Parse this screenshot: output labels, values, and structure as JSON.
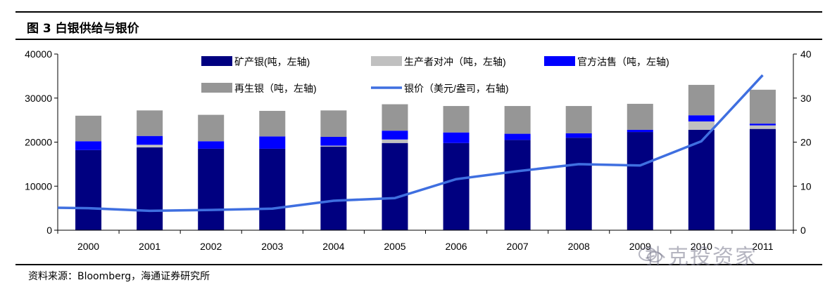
{
  "figure": {
    "title": "图 3  白银供给与银价",
    "source": "资料来源：Bloomberg，海通证券研究所",
    "watermark": "扑克投资家"
  },
  "colors": {
    "mine": "#000080",
    "producer_hedge": "#c0c0c0",
    "official": "#0000ff",
    "scrap": "#969696",
    "price": "#3f6fe0"
  },
  "chart_data": {
    "type": "bar",
    "stacked": true,
    "title": "白银供给与银价",
    "categories": [
      "2000",
      "2001",
      "2002",
      "2003",
      "2004",
      "2005",
      "2006",
      "2007",
      "2008",
      "2009",
      "2010",
      "2011"
    ],
    "series": [
      {
        "name": "矿产银(吨，左轴)",
        "axis": "left",
        "type": "bar",
        "color_key": "mine",
        "values": [
          18200,
          18800,
          18500,
          18500,
          19000,
          19800,
          19800,
          20500,
          21000,
          22300,
          22800,
          23000
        ]
      },
      {
        "name": "生产者对冲（吨，左轴)",
        "axis": "left",
        "type": "bar",
        "color_key": "producer_hedge",
        "values": [
          0,
          600,
          0,
          0,
          200,
          800,
          0,
          0,
          0,
          0,
          1900,
          800
        ]
      },
      {
        "name": "官方沽售（吨，左轴)",
        "axis": "left",
        "type": "bar",
        "color_key": "official",
        "values": [
          2000,
          2000,
          1700,
          2800,
          2000,
          2000,
          2400,
          1400,
          1000,
          500,
          1400,
          400
        ]
      },
      {
        "name": "再生银（吨，左轴)",
        "axis": "left",
        "type": "bar",
        "color_key": "scrap",
        "values": [
          5800,
          5800,
          6000,
          5800,
          6000,
          6000,
          6000,
          6300,
          6200,
          5900,
          6900,
          7700
        ]
      },
      {
        "name": "银价（美元/盎司，右轴)",
        "axis": "right",
        "type": "line",
        "color_key": "price",
        "values": [
          5.0,
          4.4,
          4.6,
          4.9,
          6.7,
          7.3,
          11.6,
          13.4,
          15.0,
          14.7,
          20.2,
          35.2
        ]
      }
    ],
    "line_start_value": 5.1,
    "yleft": {
      "min": 0,
      "max": 40000,
      "ticks": [
        "0",
        "10000",
        "20000",
        "30000",
        "40000"
      ]
    },
    "yright": {
      "min": 0,
      "max": 40,
      "ticks": [
        "0",
        "10",
        "20",
        "30",
        "40"
      ]
    },
    "legend_position": "top"
  }
}
